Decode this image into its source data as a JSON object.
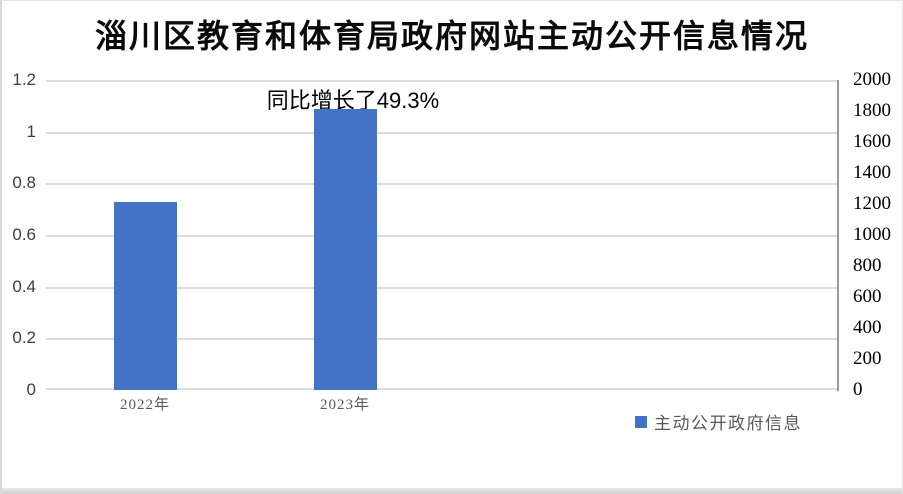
{
  "chart_data": {
    "type": "bar",
    "title": "淄川区教育和体育局政府网站主动公开信息情况",
    "annotation": "同比增长了49.3%",
    "categories": [
      "2022年",
      "2023年"
    ],
    "series": [
      {
        "name": "主动公开政府信息",
        "values": [
          1213,
          1811
        ],
        "axis": "right"
      }
    ],
    "left_axis": {
      "min": 0,
      "max": 1.2,
      "step": 0.2,
      "ticks": [
        "1.2",
        "1",
        "0.8",
        "0.6",
        "0.4",
        "0.2",
        "0"
      ]
    },
    "right_axis": {
      "min": 0,
      "max": 2000,
      "step": 200,
      "ticks": [
        "2000",
        "1800",
        "1600",
        "1400",
        "1200",
        "1000",
        "800",
        "600",
        "400",
        "200",
        "0"
      ]
    },
    "legend": {
      "label": "主动公开政府信息",
      "position": "bottom-right"
    },
    "grid": true,
    "colors": {
      "bar": "#4472C4",
      "gridline": "#dcdcdc",
      "right_axis_line": "#9a9a9a"
    }
  }
}
